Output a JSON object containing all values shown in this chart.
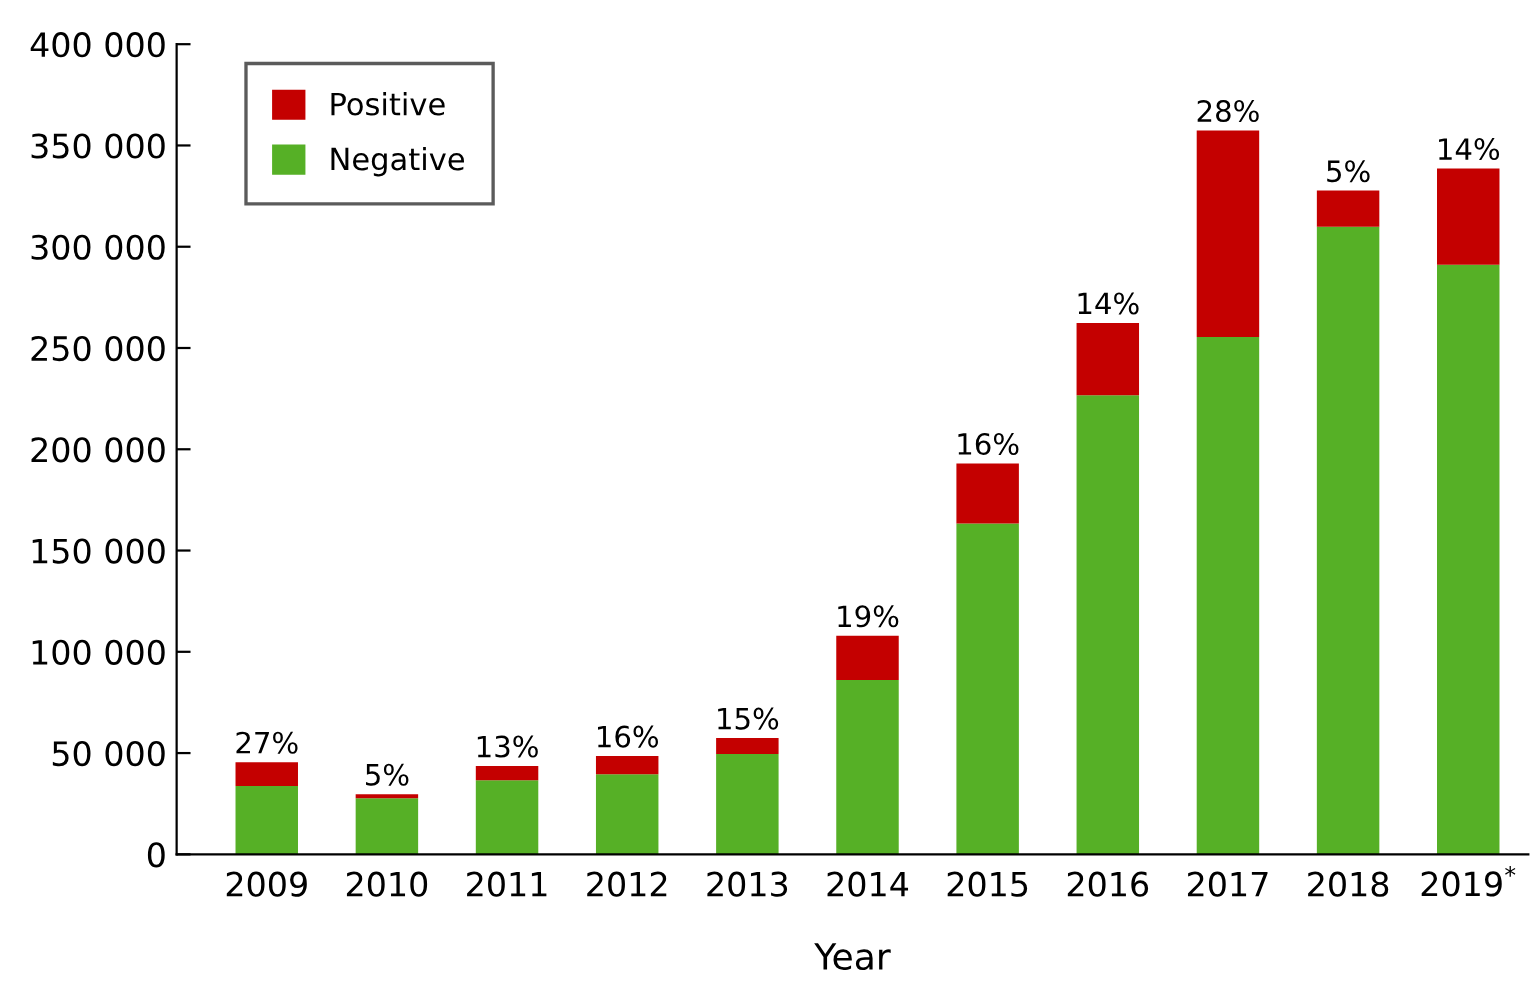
{
  "chart_data": {
    "type": "bar",
    "stacked": true,
    "xlabel": "Year",
    "categories": [
      "2009",
      "2010",
      "2011",
      "2012",
      "2013",
      "2014",
      "2015",
      "2016",
      "2017",
      "2018",
      "2019$^{*}$"
    ],
    "series": [
      {
        "name": "Negative",
        "color": "#56b026",
        "values": [
          33700,
          27700,
          36600,
          39600,
          49500,
          86100,
          163400,
          226700,
          255400,
          309900,
          291100
        ]
      },
      {
        "name": "Positive",
        "color": "#c40000",
        "values": [
          11800,
          2000,
          7000,
          8900,
          7900,
          21800,
          29600,
          35700,
          102000,
          17800,
          47500
        ]
      }
    ],
    "ylim": [
      0,
      400000
    ],
    "yticks": [
      {
        "value": 0,
        "label": "0"
      },
      {
        "value": 50000,
        "label": "50 000"
      },
      {
        "value": 100000,
        "label": "100 000"
      },
      {
        "value": 150000,
        "label": "150 000"
      },
      {
        "value": 200000,
        "label": "200 000"
      },
      {
        "value": 250000,
        "label": "250 000"
      },
      {
        "value": 300000,
        "label": "300 000"
      },
      {
        "value": 350000,
        "label": "350 000"
      },
      {
        "value": 400000,
        "label": "400 000"
      }
    ],
    "annotations": [
      {
        "text": "27%",
        "x": "2009",
        "y": 45500
      },
      {
        "text": "5%",
        "x": "2010",
        "y": 29700
      },
      {
        "text": "13%",
        "x": "2011",
        "y": 43600
      },
      {
        "text": "16%",
        "x": "2012",
        "y": 48500
      },
      {
        "text": "15%",
        "x": "2013",
        "y": 57400
      },
      {
        "text": "19%",
        "x": "2014",
        "y": 107900
      },
      {
        "text": "16%",
        "x": "2015",
        "y": 193000
      },
      {
        "text": "14%",
        "x": "2016",
        "y": 262400
      },
      {
        "text": "28%",
        "x": "2017",
        "y": 357400
      },
      {
        "text": "5%",
        "x": "2018",
        "y": 327700
      },
      {
        "text": "14%",
        "x": "2019$^{*}$",
        "y": 338600
      }
    ],
    "grid": false,
    "legend": "top left"
  }
}
